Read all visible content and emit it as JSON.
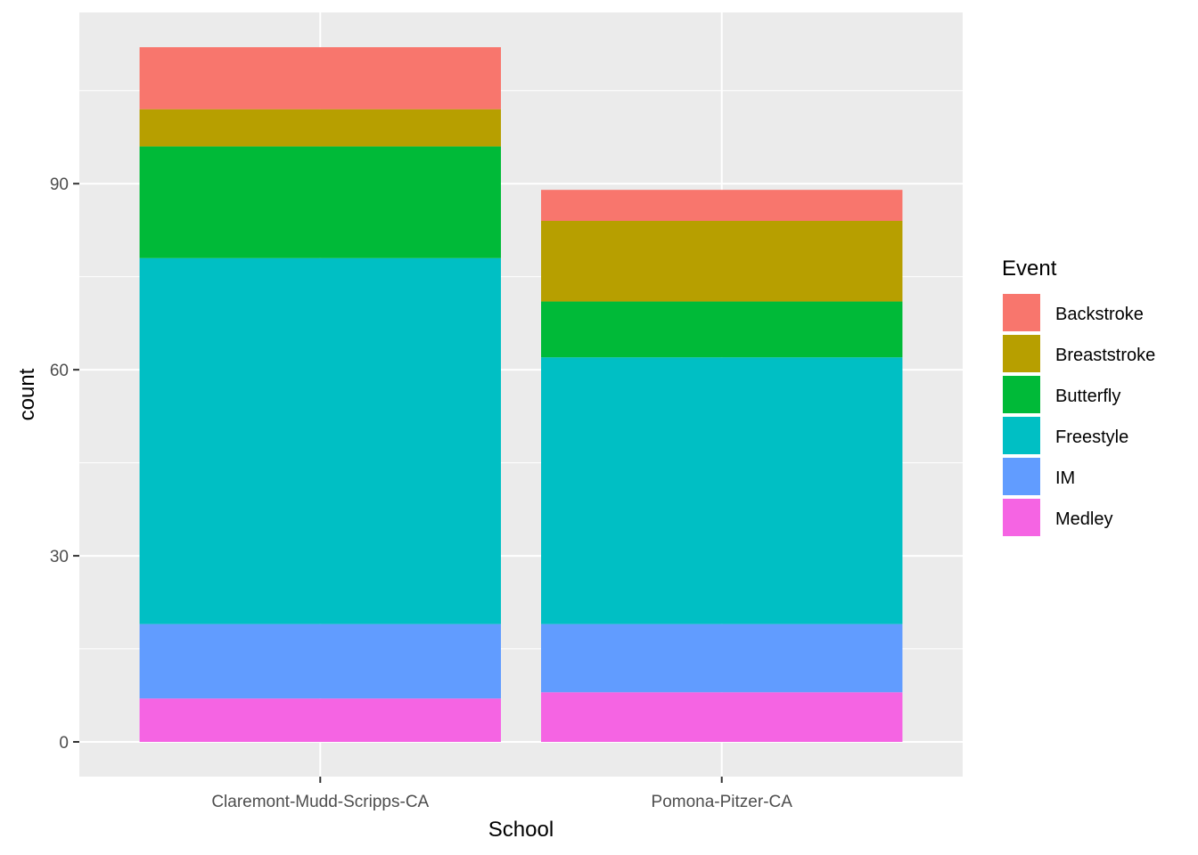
{
  "chart_data": {
    "type": "bar",
    "stacked": true,
    "categories": [
      "Claremont-Mudd-Scripps-CA",
      "Pomona-Pitzer-CA"
    ],
    "series": [
      {
        "name": "Medley",
        "color": "#F564E3",
        "values": [
          7,
          8
        ]
      },
      {
        "name": "IM",
        "color": "#619CFF",
        "values": [
          12,
          11
        ]
      },
      {
        "name": "Freestyle",
        "color": "#00BFC4",
        "values": [
          59,
          43
        ]
      },
      {
        "name": "Butterfly",
        "color": "#00BA38",
        "values": [
          18,
          9
        ]
      },
      {
        "name": "Breaststroke",
        "color": "#B79F00",
        "values": [
          6,
          13
        ]
      },
      {
        "name": "Backstroke",
        "color": "#F8766D",
        "values": [
          10,
          5
        ]
      }
    ],
    "legend_order": [
      "Backstroke",
      "Breaststroke",
      "Butterfly",
      "Freestyle",
      "IM",
      "Medley"
    ],
    "xlabel": "School",
    "ylabel": "count",
    "ylim": [
      -5.6,
      117.6
    ],
    "yticks": [
      0,
      30,
      60,
      90
    ],
    "grid": true,
    "panel_background": "#EBEBEB",
    "legend_title": "Event",
    "legend_position": "right"
  }
}
